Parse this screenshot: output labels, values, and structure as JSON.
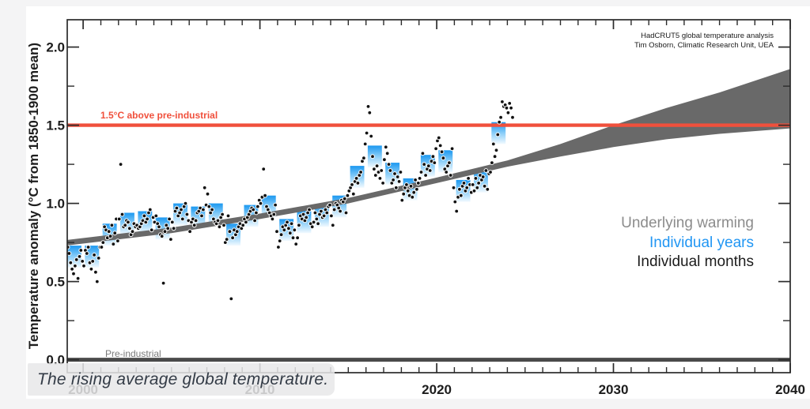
{
  "caption": {
    "text": "The rising average global temperature."
  },
  "chart_data": {
    "type": "scatter",
    "attribution": [
      "HadCRUT5 global temperature analysis",
      "Tim Osborn, Climatic Research Unit, UEA"
    ],
    "ylabel": "Temperature anomaly (°C from 1850-1900 mean)",
    "xlim": [
      1999.1,
      2040
    ],
    "ylim": [
      -0.083,
      2.175
    ],
    "x_major_ticks": [
      2000,
      2010,
      2020,
      2030,
      2040
    ],
    "x_major_labels": [
      "2000",
      "2010",
      "2020",
      "2030",
      "2040"
    ],
    "x_minor_step_years": 1,
    "y_major_ticks": [
      0.0,
      0.5,
      1.0,
      1.5,
      2.0
    ],
    "y_major_labels": [
      "0.0",
      "0.5",
      "1.0",
      "1.5",
      "2.0"
    ],
    "y_minor_ticks": [
      0.25,
      0.75,
      1.25,
      1.75
    ],
    "grid": "off",
    "legend_position": "right-middle",
    "legend": [
      {
        "label": "Underlying warming",
        "color": "#8c8c8c"
      },
      {
        "label": "Individual years",
        "color": "#2196f3"
      },
      {
        "label": "Individual months",
        "color": "#1c1c1c"
      }
    ],
    "threshold_line": {
      "value": 1.5,
      "label": "1.5°C above pre-industrial",
      "color": "#f0503c"
    },
    "baseline_line": {
      "value": 0.0,
      "label": "Pre-industrial",
      "color": "#4a4a4a",
      "label_color": "#7a7a7a"
    },
    "underlying_warming_band": {
      "color": "#696969",
      "upper": [
        [
          1999,
          0.765
        ],
        [
          2005,
          0.845
        ],
        [
          2010,
          0.935
        ],
        [
          2015,
          1.035
        ],
        [
          2020,
          1.165
        ],
        [
          2024,
          1.275
        ],
        [
          2027,
          1.38
        ],
        [
          2030,
          1.5
        ],
        [
          2033,
          1.61
        ],
        [
          2036,
          1.71
        ],
        [
          2040,
          1.86
        ]
      ],
      "lower": [
        [
          1999,
          0.73
        ],
        [
          2005,
          0.81
        ],
        [
          2010,
          0.9
        ],
        [
          2015,
          1.0
        ],
        [
          2020,
          1.13
        ],
        [
          2024,
          1.235
        ],
        [
          2027,
          1.3
        ],
        [
          2030,
          1.36
        ],
        [
          2033,
          1.41
        ],
        [
          2036,
          1.445
        ],
        [
          2040,
          1.48
        ]
      ]
    },
    "individual_years": {
      "marker": {
        "width_years": 0.8,
        "height_degC": 0.14,
        "gradient": [
          "#1b98f0",
          "#86ccf8",
          "#f2faff"
        ]
      },
      "series": [
        [
          1999,
          0.66
        ],
        [
          2000,
          0.66
        ],
        [
          2001,
          0.8
        ],
        [
          2002,
          0.87
        ],
        [
          2003,
          0.88
        ],
        [
          2004,
          0.84
        ],
        [
          2005,
          0.93
        ],
        [
          2006,
          0.91
        ],
        [
          2007,
          0.93
        ],
        [
          2008,
          0.8
        ],
        [
          2009,
          0.92
        ],
        [
          2010,
          0.98
        ],
        [
          2011,
          0.83
        ],
        [
          2012,
          0.88
        ],
        [
          2013,
          0.92
        ],
        [
          2014,
          0.98
        ],
        [
          2015,
          1.17
        ],
        [
          2016,
          1.3
        ],
        [
          2017,
          1.19
        ],
        [
          2018,
          1.09
        ],
        [
          2019,
          1.24
        ],
        [
          2020,
          1.27
        ],
        [
          2021,
          1.08
        ],
        [
          2022,
          1.14
        ],
        [
          2023,
          1.45
        ]
      ]
    },
    "individual_months": {
      "marker": {
        "color": "#111111",
        "outline": "#ffffff",
        "radius_px": 2.4
      },
      "per_year": {
        "1999": [
          0.78,
          0.72,
          0.68,
          0.62,
          0.58,
          0.55,
          0.6,
          0.64,
          0.52,
          0.66,
          0.7,
          0.63
        ],
        "2000": [
          0.6,
          0.7,
          0.68,
          0.72,
          0.62,
          0.58,
          0.63,
          0.67,
          0.56,
          0.5,
          0.65,
          0.72
        ],
        "2001": [
          0.72,
          0.75,
          0.85,
          0.83,
          0.78,
          0.82,
          0.79,
          0.86,
          0.74,
          0.81,
          0.9,
          0.76
        ],
        "2002": [
          0.9,
          1.25,
          0.93,
          0.85,
          0.86,
          0.89,
          0.88,
          0.84,
          0.8,
          0.82,
          0.87,
          0.85
        ],
        "2003": [
          0.86,
          0.84,
          0.85,
          0.87,
          0.89,
          0.92,
          0.88,
          0.9,
          0.94,
          0.96,
          0.83,
          0.91
        ],
        "2004": [
          0.88,
          0.92,
          0.87,
          0.85,
          0.8,
          0.79,
          0.49,
          0.82,
          0.86,
          0.84,
          0.9,
          0.77
        ],
        "2005": [
          0.88,
          0.84,
          0.95,
          0.97,
          0.92,
          0.94,
          0.96,
          0.9,
          0.98,
          1.0,
          0.93,
          0.89
        ],
        "2006": [
          0.82,
          0.88,
          0.9,
          0.86,
          0.89,
          0.94,
          0.95,
          0.97,
          0.92,
          0.96,
          1.1,
          0.99
        ],
        "2007": [
          1.06,
          0.98,
          0.94,
          0.96,
          0.9,
          0.88,
          0.87,
          0.89,
          0.85,
          0.91,
          0.93,
          0.86
        ],
        "2008": [
          0.75,
          0.77,
          0.92,
          0.82,
          0.39,
          0.78,
          0.83,
          0.8,
          0.82,
          0.85,
          0.87,
          0.84
        ],
        "2009": [
          0.86,
          0.9,
          0.88,
          0.91,
          0.93,
          0.95,
          0.97,
          0.96,
          0.89,
          0.94,
          0.98,
          1.02
        ],
        "2010": [
          1.0,
          1.04,
          1.22,
          1.05,
          0.98,
          0.96,
          0.94,
          0.92,
          0.9,
          0.93,
          0.99,
          0.82
        ],
        "2011": [
          0.72,
          0.76,
          0.8,
          0.85,
          0.83,
          0.86,
          0.88,
          0.84,
          0.81,
          0.87,
          0.78,
          0.83
        ],
        "2012": [
          0.74,
          0.78,
          0.86,
          0.92,
          0.9,
          0.93,
          0.89,
          0.91,
          0.94,
          0.96,
          0.87,
          0.85
        ],
        "2013": [
          0.88,
          0.94,
          0.9,
          0.87,
          0.93,
          0.95,
          0.91,
          0.92,
          0.96,
          0.94,
          0.98,
          0.99
        ],
        "2014": [
          0.92,
          0.86,
          0.96,
          1.0,
          0.99,
          0.97,
          0.95,
          1.02,
          1.01,
          1.03,
          0.94,
          1.05
        ],
        "2015": [
          1.08,
          1.1,
          1.12,
          1.06,
          1.14,
          1.16,
          1.13,
          1.18,
          1.2,
          1.27,
          1.29,
          1.38
        ],
        "2016": [
          1.45,
          1.62,
          1.58,
          1.43,
          1.3,
          1.22,
          1.18,
          1.24,
          1.2,
          1.16,
          1.21,
          1.13
        ],
        "2017": [
          1.28,
          1.36,
          1.32,
          1.25,
          1.21,
          1.13,
          1.15,
          1.19,
          1.1,
          1.17,
          1.14,
          1.2
        ],
        "2018": [
          1.02,
          1.06,
          1.1,
          1.12,
          1.08,
          1.05,
          1.11,
          1.04,
          1.07,
          1.15,
          1.09,
          1.13
        ],
        "2019": [
          1.16,
          1.2,
          1.32,
          1.25,
          1.18,
          1.22,
          1.24,
          1.21,
          1.27,
          1.3,
          1.26,
          1.35
        ],
        "2020": [
          1.4,
          1.42,
          1.37,
          1.33,
          1.29,
          1.22,
          1.2,
          1.24,
          1.26,
          1.18,
          1.35,
          1.1
        ],
        "2021": [
          1.01,
          0.95,
          1.04,
          1.09,
          1.05,
          1.11,
          1.13,
          1.08,
          1.1,
          1.16,
          1.12,
          1.07
        ],
        "2022": [
          1.12,
          1.08,
          1.16,
          1.1,
          1.13,
          1.18,
          1.15,
          1.17,
          1.11,
          1.21,
          1.09,
          1.19
        ],
        "2023": [
          1.2,
          1.26,
          1.38,
          1.3,
          1.34,
          1.44,
          1.52,
          1.55,
          1.65,
          1.62,
          1.63,
          1.61
        ],
        "2024": [
          1.58,
          1.64,
          1.61,
          1.55
        ]
      }
    },
    "styles": {
      "axis_color": "#2b2b2b",
      "tick_label_color": "#1d1d1d",
      "attribution_color": "#1a1a1a",
      "threshold_thickness_px": 4.4,
      "baseline_thickness_px": 5
    }
  }
}
